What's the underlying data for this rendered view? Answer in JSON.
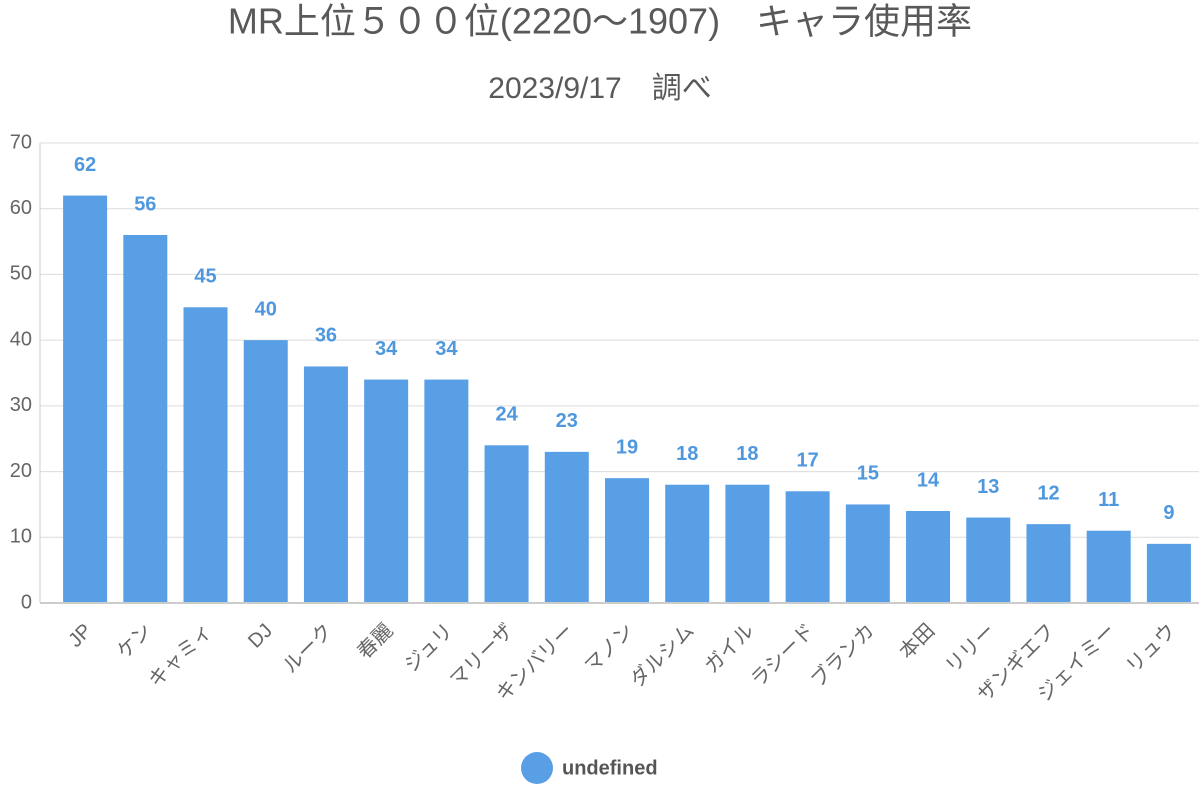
{
  "chart_data": {
    "type": "bar",
    "title": "MR上位５００位(2220～1907)　キャラ使用率",
    "subtitle": "2023/9/17　調べ",
    "categories": [
      "JP",
      "ケン",
      "キャミィ",
      "DJ",
      "ルーク",
      "春麗",
      "ジュリ",
      "マリーザ",
      "キンバリー",
      "マノン",
      "ダルシム",
      "ガイル",
      "ラシード",
      "ブランカ",
      "本田",
      "リリー",
      "ザンギエフ",
      "ジェイミー",
      "リュウ"
    ],
    "series": [
      {
        "name": "undefined",
        "color": "#589fe6",
        "values": [
          62,
          56,
          45,
          40,
          36,
          34,
          34,
          24,
          23,
          19,
          18,
          18,
          17,
          15,
          14,
          13,
          12,
          11,
          9
        ]
      }
    ],
    "ylim": [
      0,
      70
    ],
    "yticks": [
      0,
      10,
      20,
      30,
      40,
      50,
      60,
      70
    ],
    "grid": true,
    "legend": "bottom"
  }
}
